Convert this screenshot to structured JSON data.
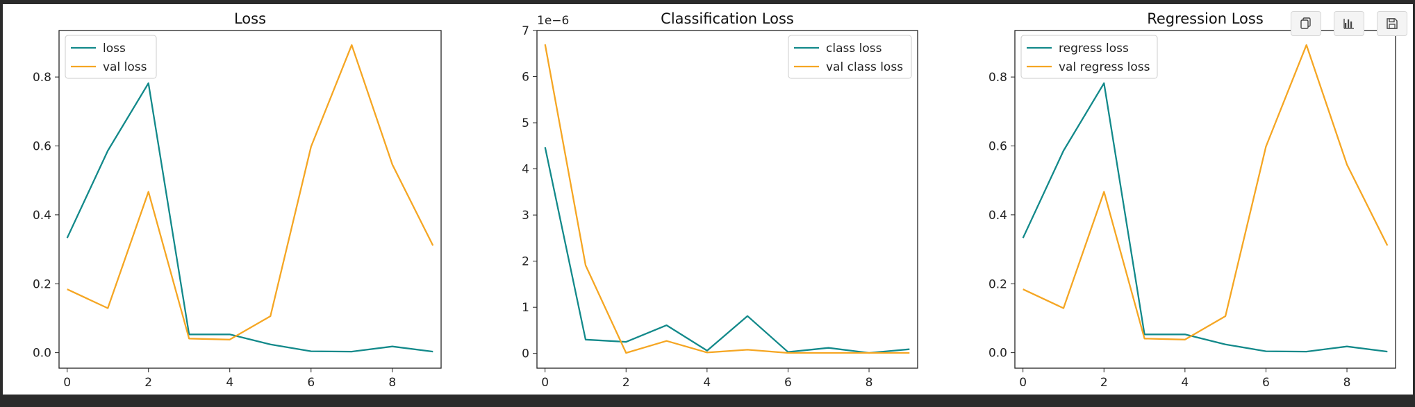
{
  "toolbar": {
    "copy_icon": "copy-icon",
    "chart_icon": "bar-chart-icon",
    "save_icon": "floppy-disk-icon"
  },
  "colors": {
    "train": "#12898a",
    "val": "#f5a623",
    "background": "#2b2b2b"
  },
  "chart_data": [
    {
      "type": "line",
      "title": "Loss",
      "xlabel": "",
      "ylabel": "",
      "x": [
        0,
        1,
        2,
        3,
        4,
        5,
        6,
        7,
        8,
        9
      ],
      "xlim": [
        -0.2,
        9.2
      ],
      "ylim": [
        -0.045,
        0.935
      ],
      "xticks": [
        0,
        2,
        4,
        6,
        8
      ],
      "xtick_labels": [
        "0",
        "2",
        "4",
        "6",
        "8"
      ],
      "yticks": [
        0.0,
        0.2,
        0.4,
        0.6,
        0.8
      ],
      "ytick_labels": [
        "0.0",
        "0.2",
        "0.4",
        "0.6",
        "0.8"
      ],
      "legend_position": "upper-left",
      "series": [
        {
          "name": "loss",
          "color": "#12898a",
          "values": [
            0.333,
            0.586,
            0.782,
            0.053,
            0.053,
            0.024,
            0.004,
            0.003,
            0.018,
            0.003
          ]
        },
        {
          "name": "val loss",
          "color": "#f5a623",
          "values": [
            0.184,
            0.129,
            0.467,
            0.041,
            0.038,
            0.106,
            0.598,
            0.893,
            0.546,
            0.311
          ]
        }
      ]
    },
    {
      "type": "line",
      "title": "Classification Loss",
      "offset_text": "1e−6",
      "xlabel": "",
      "ylabel": "",
      "x": [
        0,
        1,
        2,
        3,
        4,
        5,
        6,
        7,
        8,
        9
      ],
      "xlim": [
        -0.2,
        9.2
      ],
      "ylim": [
        -0.32,
        7.0
      ],
      "xticks": [
        0,
        2,
        4,
        6,
        8
      ],
      "xtick_labels": [
        "0",
        "2",
        "4",
        "6",
        "8"
      ],
      "yticks": [
        0,
        1,
        2,
        3,
        4,
        5,
        6,
        7
      ],
      "ytick_labels": [
        "0",
        "1",
        "2",
        "3",
        "4",
        "5",
        "6",
        "7"
      ],
      "legend_position": "upper-right",
      "series": [
        {
          "name": "class loss",
          "color": "#12898a",
          "values": [
            4.47,
            0.3,
            0.25,
            0.61,
            0.06,
            0.81,
            0.03,
            0.12,
            0.01,
            0.09
          ]
        },
        {
          "name": "val class loss",
          "color": "#f5a623",
          "values": [
            6.7,
            1.91,
            0.01,
            0.27,
            0.02,
            0.08,
            0.01,
            0.01,
            0.01,
            0.01
          ]
        }
      ]
    },
    {
      "type": "line",
      "title": "Regression Loss",
      "xlabel": "",
      "ylabel": "",
      "x": [
        0,
        1,
        2,
        3,
        4,
        5,
        6,
        7,
        8,
        9
      ],
      "xlim": [
        -0.2,
        9.2
      ],
      "ylim": [
        -0.045,
        0.935
      ],
      "xticks": [
        0,
        2,
        4,
        6,
        8
      ],
      "xtick_labels": [
        "0",
        "2",
        "4",
        "6",
        "8"
      ],
      "yticks": [
        0.0,
        0.2,
        0.4,
        0.6,
        0.8
      ],
      "ytick_labels": [
        "0.0",
        "0.2",
        "0.4",
        "0.6",
        "0.8"
      ],
      "legend_position": "upper-left",
      "series": [
        {
          "name": "regress loss",
          "color": "#12898a",
          "values": [
            0.333,
            0.586,
            0.782,
            0.053,
            0.053,
            0.024,
            0.004,
            0.003,
            0.018,
            0.003
          ]
        },
        {
          "name": "val regress loss",
          "color": "#f5a623",
          "values": [
            0.184,
            0.129,
            0.467,
            0.041,
            0.038,
            0.106,
            0.598,
            0.893,
            0.546,
            0.311
          ]
        }
      ]
    }
  ]
}
